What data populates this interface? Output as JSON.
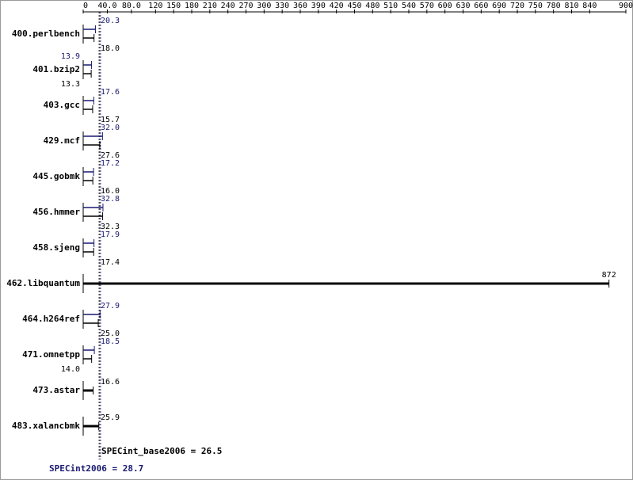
{
  "chart_data": {
    "type": "bar",
    "categories": [
      "400.perlbench",
      "401.bzip2",
      "403.gcc",
      "429.mcf",
      "445.gobmk",
      "456.hmmer",
      "458.sjeng",
      "462.libquantum",
      "464.h264ref",
      "471.omnetpp",
      "473.astar",
      "483.xalancbmk"
    ],
    "series": [
      {
        "name": "SPECint_base2006",
        "color": "#000000",
        "values": [
          18.0,
          13.3,
          15.7,
          27.6,
          16.0,
          32.3,
          17.4,
          872,
          25.0,
          14.0,
          16.6,
          25.9
        ],
        "value_labels": [
          "18.0",
          "13.3",
          "15.7",
          "27.6",
          "16.0",
          "32.3",
          "17.4",
          "872",
          "25.0",
          "14.0",
          "16.6",
          "25.9"
        ],
        "mean": 26.5,
        "mean_label": "SPECint_base2006 = 26.5"
      },
      {
        "name": "SPECint2006",
        "color": "#191970",
        "values": [
          20.3,
          13.9,
          17.6,
          32.0,
          17.2,
          32.8,
          17.9,
          null,
          27.9,
          18.5,
          null,
          null
        ],
        "value_labels": [
          "20.3",
          "13.9",
          "17.6",
          "32.0",
          "17.2",
          "32.8",
          "17.9",
          null,
          "27.9",
          "18.5",
          null,
          null
        ],
        "mean": 28.7,
        "mean_label": "SPECint2006 = 28.7"
      }
    ],
    "xlim": [
      0,
      900
    ],
    "xticks": [
      0,
      {
        "value": 40,
        "label": "40.0"
      },
      {
        "value": 80,
        "label": "80.0"
      },
      120,
      150,
      180,
      210,
      240,
      270,
      300,
      330,
      360,
      390,
      420,
      450,
      480,
      510,
      540,
      570,
      600,
      630,
      660,
      690,
      720,
      750,
      780,
      810,
      840,
      900
    ]
  }
}
